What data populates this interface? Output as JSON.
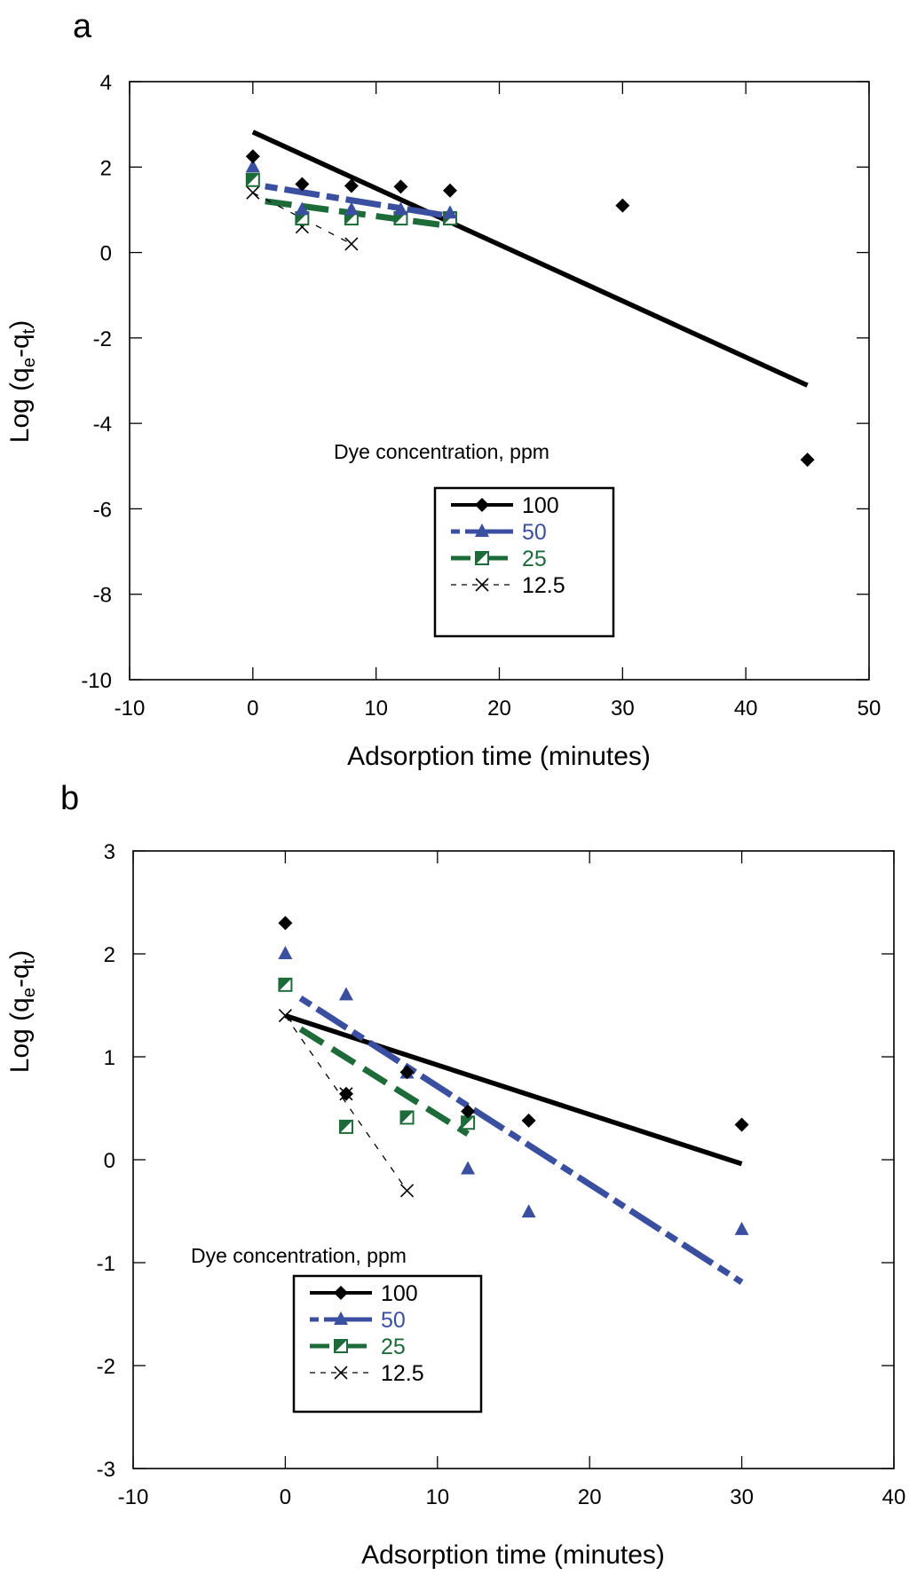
{
  "colors": {
    "c100": "#000000",
    "c50": "#3b4fa0",
    "c25": "#1e6b3a",
    "c12_5": "#000000"
  },
  "chart_data": [
    {
      "panel_label": "a",
      "type": "scatter",
      "xlabel": "Adsorption time (minutes)",
      "ylabel_main": "Log (q",
      "ylabel_sub1": "e",
      "ylabel_mid": "-q",
      "ylabel_sub2": "t",
      "ylabel_end": ")",
      "xlim": [
        -10,
        50
      ],
      "ylim": [
        -10,
        4
      ],
      "xticks": [
        -10,
        0,
        10,
        20,
        30,
        40,
        50
      ],
      "yticks": [
        -10,
        -8,
        -6,
        -4,
        -2,
        0,
        2,
        4
      ],
      "grid": false,
      "legend_title": "Dye concentration,  ppm",
      "legend_position": "lower-center",
      "series": [
        {
          "name": "100",
          "marker": "diamond",
          "line": "solid",
          "x": [
            0,
            4,
            8,
            12,
            16,
            30,
            45
          ],
          "y": [
            2.25,
            1.6,
            1.56,
            1.54,
            1.45,
            1.1,
            -4.85
          ],
          "fit": {
            "x": [
              0,
              45
            ],
            "y": [
              2.82,
              -3.11
            ]
          }
        },
        {
          "name": "50",
          "marker": "triangle",
          "line": "dashdot",
          "x": [
            0,
            4,
            8,
            12,
            16
          ],
          "y": [
            2.0,
            1.0,
            1.0,
            1.0,
            0.92
          ],
          "fit": {
            "x": [
              1,
              16
            ],
            "y": [
              1.55,
              0.85
            ]
          }
        },
        {
          "name": "25",
          "marker": "half-square",
          "line": "dash",
          "x": [
            0,
            4,
            8,
            12,
            16
          ],
          "y": [
            1.7,
            0.8,
            0.8,
            0.8,
            0.8
          ],
          "fit": {
            "x": [
              1,
              16
            ],
            "y": [
              1.2,
              0.62
            ]
          }
        },
        {
          "name": "12.5",
          "marker": "x",
          "line": "dotted",
          "x": [
            0,
            4,
            8
          ],
          "y": [
            1.4,
            0.6,
            0.2
          ],
          "fit": {
            "x": [
              0,
              8
            ],
            "y": [
              1.4,
              0.2
            ]
          }
        }
      ]
    },
    {
      "panel_label": "b",
      "type": "scatter",
      "xlabel": "Adsorption time (minutes)",
      "ylabel_main": "Log (q",
      "ylabel_sub1": "e",
      "ylabel_mid": "-q",
      "ylabel_sub2": "t",
      "ylabel_end": ")",
      "xlim": [
        -10,
        40
      ],
      "ylim": [
        -3,
        3
      ],
      "xticks": [
        -10,
        0,
        10,
        20,
        30,
        40
      ],
      "yticks": [
        -3,
        -2,
        -1,
        0,
        1,
        2,
        3
      ],
      "grid": false,
      "legend_title": "Dye concentration, ppm",
      "legend_position": "lower-left",
      "series": [
        {
          "name": "100",
          "marker": "diamond",
          "line": "solid",
          "x": [
            0,
            4,
            8,
            12,
            16,
            30
          ],
          "y": [
            2.3,
            0.64,
            0.85,
            0.47,
            0.38,
            0.34
          ],
          "fit": {
            "x": [
              0,
              30
            ],
            "y": [
              1.4,
              -0.04
            ]
          }
        },
        {
          "name": "50",
          "marker": "triangle",
          "line": "dashdot",
          "x": [
            0,
            4,
            8,
            12,
            16,
            30
          ],
          "y": [
            2.0,
            1.6,
            0.84,
            -0.09,
            -0.51,
            -0.68
          ],
          "fit": {
            "x": [
              1,
              30
            ],
            "y": [
              1.57,
              -1.19
            ]
          }
        },
        {
          "name": "25",
          "marker": "half-square",
          "line": "dash",
          "x": [
            0,
            4,
            8,
            12
          ],
          "y": [
            1.7,
            0.32,
            0.41,
            0.36
          ],
          "fit": {
            "x": [
              1,
              12
            ],
            "y": [
              1.27,
              0.25
            ]
          }
        },
        {
          "name": "12.5",
          "marker": "x",
          "line": "dotted",
          "x": [
            0,
            4,
            8
          ],
          "y": [
            1.4,
            0.64,
            -0.3
          ],
          "fit": {
            "x": [
              0,
              8
            ],
            "y": [
              1.4,
              -0.3
            ]
          }
        }
      ]
    }
  ]
}
